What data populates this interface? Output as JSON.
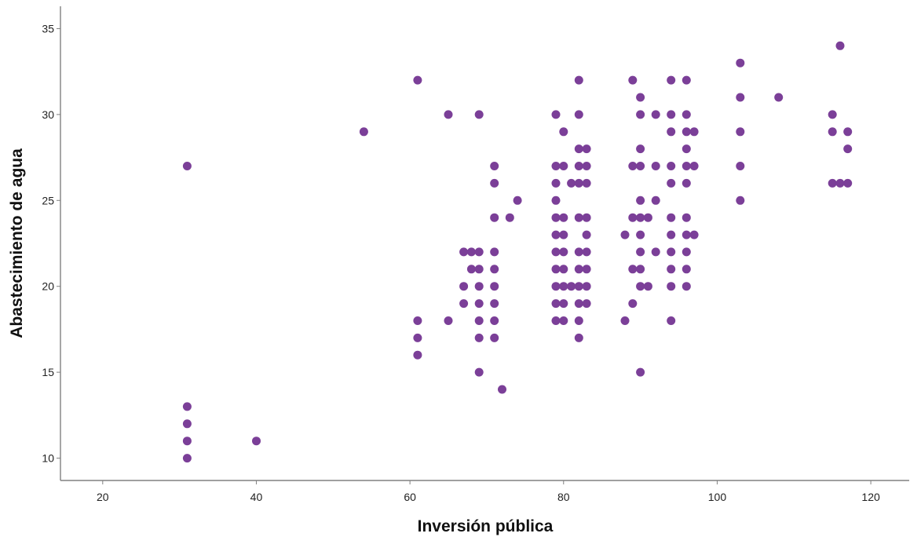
{
  "chart_data": {
    "type": "scatter",
    "title": "",
    "xlabel": "Inversión pública",
    "ylabel": "Abastecimiento de agua",
    "xlim": [
      14.5,
      125
    ],
    "ylim": [
      8.7,
      36.3
    ],
    "xticks": [
      20,
      40,
      60,
      80,
      100,
      120
    ],
    "yticks": [
      10,
      15,
      20,
      25,
      30,
      35
    ],
    "xtick_labels": [
      "20",
      "40",
      "60",
      "80",
      "100",
      "120"
    ],
    "ytick_labels": [
      "10",
      "15",
      "20",
      "25",
      "30",
      "35"
    ],
    "grid": false,
    "marker_color": "#7B3F98",
    "points": [
      [
        31,
        27
      ],
      [
        31,
        13
      ],
      [
        31,
        12
      ],
      [
        31,
        11
      ],
      [
        31,
        10
      ],
      [
        40,
        11
      ],
      [
        54,
        29
      ],
      [
        61,
        32
      ],
      [
        61,
        18
      ],
      [
        61,
        17
      ],
      [
        61,
        16
      ],
      [
        65,
        30
      ],
      [
        65,
        18
      ],
      [
        67,
        22
      ],
      [
        67,
        20
      ],
      [
        67,
        19
      ],
      [
        68,
        22
      ],
      [
        68,
        21
      ],
      [
        69,
        30
      ],
      [
        69,
        22
      ],
      [
        69,
        21
      ],
      [
        69,
        20
      ],
      [
        69,
        19
      ],
      [
        69,
        18
      ],
      [
        69,
        17
      ],
      [
        69,
        15
      ],
      [
        71,
        27
      ],
      [
        71,
        26
      ],
      [
        71,
        24
      ],
      [
        71,
        22
      ],
      [
        71,
        21
      ],
      [
        71,
        20
      ],
      [
        71,
        19
      ],
      [
        71,
        18
      ],
      [
        71,
        17
      ],
      [
        72,
        14
      ],
      [
        73,
        24
      ],
      [
        74,
        25
      ],
      [
        79,
        30
      ],
      [
        79,
        27
      ],
      [
        79,
        26
      ],
      [
        79,
        25
      ],
      [
        79,
        24
      ],
      [
        79,
        23
      ],
      [
        79,
        22
      ],
      [
        79,
        21
      ],
      [
        79,
        20
      ],
      [
        79,
        19
      ],
      [
        79,
        18
      ],
      [
        80,
        29
      ],
      [
        80,
        27
      ],
      [
        80,
        24
      ],
      [
        80,
        23
      ],
      [
        80,
        22
      ],
      [
        80,
        21
      ],
      [
        80,
        20
      ],
      [
        80,
        19
      ],
      [
        80,
        18
      ],
      [
        81,
        26
      ],
      [
        81,
        20
      ],
      [
        82,
        32
      ],
      [
        82,
        30
      ],
      [
        82,
        28
      ],
      [
        82,
        27
      ],
      [
        82,
        26
      ],
      [
        82,
        24
      ],
      [
        82,
        22
      ],
      [
        82,
        21
      ],
      [
        82,
        20
      ],
      [
        82,
        19
      ],
      [
        82,
        18
      ],
      [
        82,
        17
      ],
      [
        83,
        28
      ],
      [
        83,
        27
      ],
      [
        83,
        26
      ],
      [
        83,
        24
      ],
      [
        83,
        23
      ],
      [
        83,
        22
      ],
      [
        83,
        21
      ],
      [
        83,
        20
      ],
      [
        83,
        19
      ],
      [
        88,
        23
      ],
      [
        88,
        18
      ],
      [
        89,
        32
      ],
      [
        89,
        27
      ],
      [
        89,
        24
      ],
      [
        89,
        21
      ],
      [
        89,
        19
      ],
      [
        90,
        31
      ],
      [
        90,
        30
      ],
      [
        90,
        28
      ],
      [
        90,
        27
      ],
      [
        90,
        25
      ],
      [
        90,
        24
      ],
      [
        90,
        23
      ],
      [
        90,
        22
      ],
      [
        90,
        21
      ],
      [
        90,
        20
      ],
      [
        90,
        15
      ],
      [
        91,
        24
      ],
      [
        91,
        20
      ],
      [
        92,
        30
      ],
      [
        92,
        27
      ],
      [
        92,
        25
      ],
      [
        92,
        22
      ],
      [
        94,
        32
      ],
      [
        94,
        30
      ],
      [
        94,
        29
      ],
      [
        94,
        27
      ],
      [
        94,
        26
      ],
      [
        94,
        24
      ],
      [
        94,
        23
      ],
      [
        94,
        22
      ],
      [
        94,
        21
      ],
      [
        94,
        20
      ],
      [
        94,
        18
      ],
      [
        96,
        32
      ],
      [
        96,
        30
      ],
      [
        96,
        29
      ],
      [
        96,
        28
      ],
      [
        96,
        27
      ],
      [
        96,
        26
      ],
      [
        96,
        24
      ],
      [
        96,
        23
      ],
      [
        96,
        22
      ],
      [
        96,
        21
      ],
      [
        96,
        20
      ],
      [
        97,
        29
      ],
      [
        97,
        27
      ],
      [
        97,
        23
      ],
      [
        103,
        33
      ],
      [
        103,
        31
      ],
      [
        103,
        29
      ],
      [
        103,
        27
      ],
      [
        103,
        25
      ],
      [
        108,
        31
      ],
      [
        115,
        30
      ],
      [
        115,
        29
      ],
      [
        115,
        26
      ],
      [
        116,
        34
      ],
      [
        116,
        26
      ],
      [
        117,
        29
      ],
      [
        117,
        28
      ],
      [
        117,
        26
      ]
    ]
  }
}
